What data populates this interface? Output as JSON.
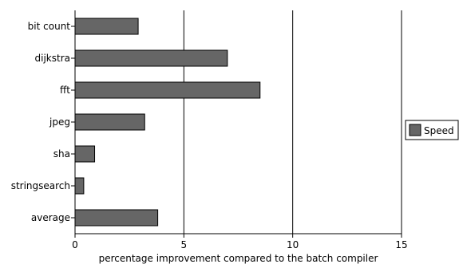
{
  "chart_data": {
    "type": "bar",
    "orientation": "horizontal",
    "categories": [
      "bit count",
      "dijkstra",
      "fft",
      "jpeg",
      "sha",
      "stringsearch",
      "average"
    ],
    "series": [
      {
        "name": "Speed",
        "values": [
          2.9,
          7.0,
          8.5,
          3.2,
          0.9,
          0.4,
          3.8
        ],
        "color": "#666666"
      }
    ],
    "xlabel": "percentage improvement compared to the batch compiler",
    "ylabel": "",
    "xlim": [
      0,
      15
    ],
    "xticks": [
      "0",
      "5",
      "10",
      "15"
    ],
    "grid": "vertical",
    "legend": "right"
  }
}
